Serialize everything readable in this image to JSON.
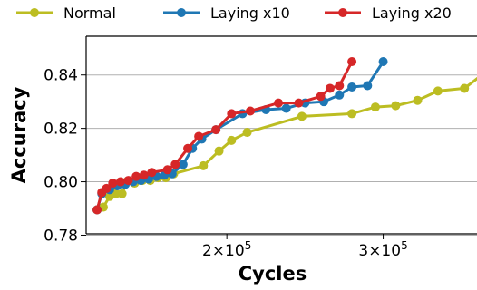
{
  "chart_data": {
    "type": "line",
    "xlabel": "Cycles",
    "ylabel": "Accuracy",
    "xlim": [
      110000,
      360000
    ],
    "ylim": [
      0.7805,
      0.8545
    ],
    "x_ticks": [
      {
        "value": 200000,
        "mantissa": "2",
        "exp": "5"
      },
      {
        "value": 300000,
        "mantissa": "3",
        "exp": "5"
      }
    ],
    "x_tick_prefix": "×10",
    "y_ticks": [
      {
        "value": 0.78,
        "label": "0.78"
      },
      {
        "value": 0.8,
        "label": "0.80"
      },
      {
        "value": 0.82,
        "label": "0.82"
      },
      {
        "value": 0.84,
        "label": "0.84"
      }
    ],
    "grid": "horizontal",
    "legend_position": "top",
    "series": [
      {
        "name": "Normal",
        "color": "#bcbd22",
        "points": [
          [
            117000,
            0.7895
          ],
          [
            121000,
            0.7905
          ],
          [
            125000,
            0.7945
          ],
          [
            129000,
            0.7955
          ],
          [
            133000,
            0.7955
          ],
          [
            136000,
            0.8
          ],
          [
            141000,
            0.7995
          ],
          [
            146000,
            0.8005
          ],
          [
            151000,
            0.8005
          ],
          [
            156000,
            0.8015
          ],
          [
            161000,
            0.8015
          ],
          [
            166000,
            0.803
          ],
          [
            185000,
            0.806
          ],
          [
            195000,
            0.8115
          ],
          [
            203000,
            0.8155
          ],
          [
            213000,
            0.8185
          ],
          [
            248000,
            0.8245
          ],
          [
            280000,
            0.8255
          ],
          [
            295000,
            0.828
          ],
          [
            308000,
            0.8285
          ],
          [
            322000,
            0.8305
          ],
          [
            335000,
            0.834
          ],
          [
            352000,
            0.835
          ],
          [
            372000,
            0.844
          ]
        ]
      },
      {
        "name": "Laying x10",
        "color": "#1f77b4",
        "points": [
          [
            117000,
            0.7895
          ],
          [
            120000,
            0.7955
          ],
          [
            125000,
            0.797
          ],
          [
            130000,
            0.7985
          ],
          [
            135000,
            0.799
          ],
          [
            140000,
            0.8
          ],
          [
            145000,
            0.8005
          ],
          [
            150000,
            0.801
          ],
          [
            155000,
            0.802
          ],
          [
            160000,
            0.8025
          ],
          [
            165000,
            0.803
          ],
          [
            172000,
            0.8065
          ],
          [
            178000,
            0.8125
          ],
          [
            184000,
            0.816
          ],
          [
            193000,
            0.8195
          ],
          [
            210000,
            0.8255
          ],
          [
            225000,
            0.827
          ],
          [
            238000,
            0.8275
          ],
          [
            250000,
            0.8295
          ],
          [
            262000,
            0.83
          ],
          [
            272000,
            0.8325
          ],
          [
            280000,
            0.8355
          ],
          [
            290000,
            0.836
          ],
          [
            300000,
            0.845
          ]
        ]
      },
      {
        "name": "Laying x20",
        "color": "#d62728",
        "points": [
          [
            117000,
            0.7895
          ],
          [
            120000,
            0.796
          ],
          [
            123000,
            0.7975
          ],
          [
            127000,
            0.7995
          ],
          [
            132000,
            0.8
          ],
          [
            137000,
            0.8005
          ],
          [
            142000,
            0.802
          ],
          [
            147000,
            0.8025
          ],
          [
            152000,
            0.8035
          ],
          [
            162000,
            0.8045
          ],
          [
            167000,
            0.8065
          ],
          [
            175000,
            0.8125
          ],
          [
            182000,
            0.817
          ],
          [
            193000,
            0.8195
          ],
          [
            203000,
            0.8255
          ],
          [
            215000,
            0.8265
          ],
          [
            233000,
            0.8295
          ],
          [
            246000,
            0.8295
          ],
          [
            260000,
            0.832
          ],
          [
            266000,
            0.835
          ],
          [
            272000,
            0.836
          ],
          [
            280000,
            0.845
          ]
        ]
      }
    ]
  }
}
